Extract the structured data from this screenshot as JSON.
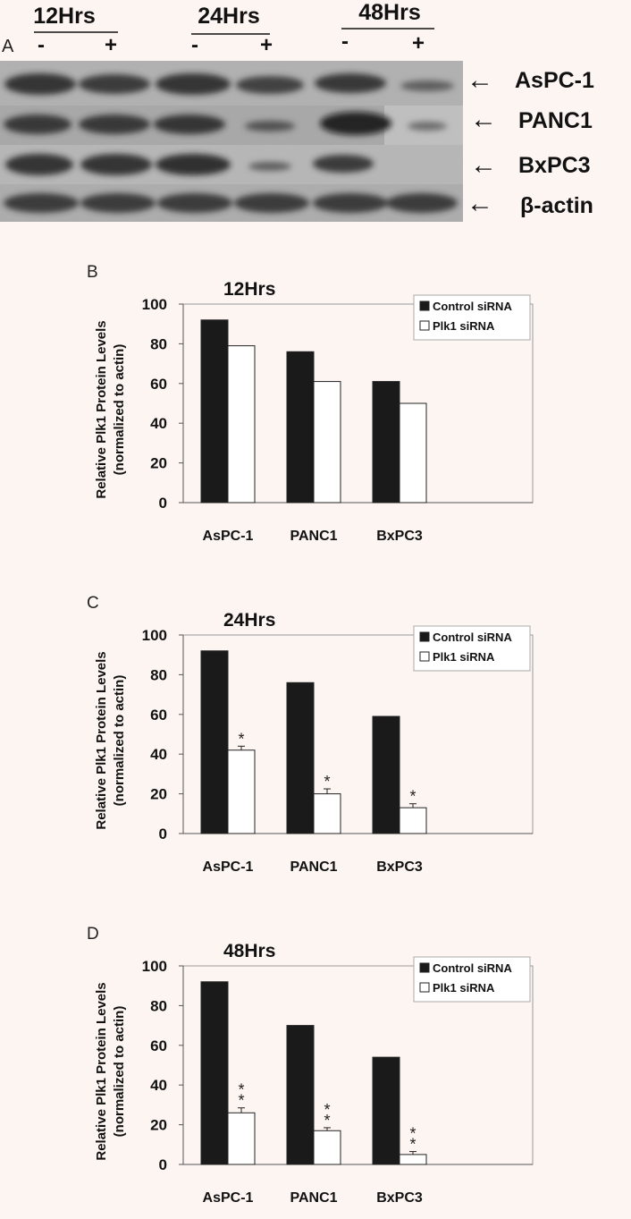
{
  "panel_a": {
    "label": "A",
    "timepoints": [
      "12Hrs",
      "24Hrs",
      "48Hrs"
    ],
    "minus": "-",
    "plus": "+",
    "rows": [
      "AsPC-1",
      "PANC1",
      "BxPC3",
      "β-actin"
    ],
    "arrow": "←"
  },
  "chart_data": [
    {
      "type": "bar",
      "panel_label": "B",
      "title": "12Hrs",
      "ylabel": "Relative Plk1 Protein Levels",
      "ylabel2": "(normalized to actin)",
      "categories": [
        "AsPC-1",
        "PANC1",
        "BxPC3"
      ],
      "ylim": [
        0,
        100
      ],
      "yticks": [
        0,
        20,
        40,
        60,
        80,
        100
      ],
      "legend_position": "top-right",
      "series": [
        {
          "name": "Control siRNA",
          "values": [
            92,
            76,
            61
          ],
          "color": "#1a1a1a"
        },
        {
          "name": "Plk1 siRNA",
          "values": [
            79,
            61,
            50
          ],
          "color": "#ffffff"
        }
      ],
      "errors": null,
      "annotations": [
        "",
        "",
        ""
      ]
    },
    {
      "type": "bar",
      "panel_label": "C",
      "title": "24Hrs",
      "ylabel": "Relative Plk1 Protein Levels",
      "ylabel2": "(normalized to actin)",
      "categories": [
        "AsPC-1",
        "PANC1",
        "BxPC3"
      ],
      "ylim": [
        0,
        100
      ],
      "yticks": [
        0,
        20,
        40,
        60,
        80,
        100
      ],
      "legend_position": "top-right",
      "series": [
        {
          "name": "Control siRNA",
          "values": [
            92,
            76,
            59
          ],
          "color": "#1a1a1a"
        },
        {
          "name": "Plk1 siRNA",
          "values": [
            42,
            20,
            13
          ],
          "color": "#ffffff"
        }
      ],
      "errors": [
        2,
        2.5,
        2
      ],
      "annotations": [
        "*",
        "*",
        "*"
      ]
    },
    {
      "type": "bar",
      "panel_label": "D",
      "title": "48Hrs",
      "ylabel": "Relative Plk1 Protein Levels",
      "ylabel2": "(normalized to actin)",
      "categories": [
        "AsPC-1",
        "PANC1",
        "BxPC3"
      ],
      "ylim": [
        0,
        100
      ],
      "yticks": [
        0,
        20,
        40,
        60,
        80,
        100
      ],
      "legend_position": "top-right",
      "series": [
        {
          "name": "Control siRNA",
          "values": [
            92,
            70,
            54
          ],
          "color": "#1a1a1a"
        },
        {
          "name": "Plk1 siRNA",
          "values": [
            26,
            17,
            5
          ],
          "color": "#ffffff"
        }
      ],
      "errors": [
        2.5,
        1.5,
        1.5
      ],
      "annotations": [
        "**",
        "**",
        "**"
      ]
    }
  ]
}
